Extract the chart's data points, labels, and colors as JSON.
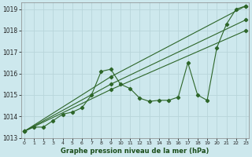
{
  "background_color": "#cde8ed",
  "grid_color": "#b8d5da",
  "line_color": "#2d6629",
  "ylim": [
    1013.0,
    1019.3
  ],
  "xlim": [
    -0.3,
    23.3
  ],
  "yticks": [
    1013,
    1014,
    1015,
    1016,
    1017,
    1018,
    1019
  ],
  "xticks": [
    0,
    1,
    2,
    3,
    4,
    5,
    6,
    7,
    8,
    9,
    10,
    11,
    12,
    13,
    14,
    15,
    16,
    17,
    18,
    19,
    20,
    21,
    22,
    23
  ],
  "xlabel": "Graphe pression niveau de la mer (hPa)",
  "main_series": [
    1013.3,
    1013.5,
    1013.5,
    1013.8,
    1014.1,
    1014.2,
    1014.4,
    1015.0,
    1016.1,
    1016.2,
    1015.5,
    1015.3,
    1014.85,
    1014.7,
    1014.75,
    1014.75,
    1014.9,
    1016.5,
    1015.0,
    1014.75,
    1017.2,
    1018.3,
    1019.0,
    1019.15
  ],
  "straight_lines": [
    {
      "x": [
        0,
        9,
        23
      ],
      "y": [
        1013.3,
        1015.85,
        1019.15
      ]
    },
    {
      "x": [
        0,
        9,
        23
      ],
      "y": [
        1013.3,
        1015.5,
        1018.5
      ]
    },
    {
      "x": [
        0,
        9,
        23
      ],
      "y": [
        1013.3,
        1015.25,
        1018.0
      ]
    }
  ]
}
